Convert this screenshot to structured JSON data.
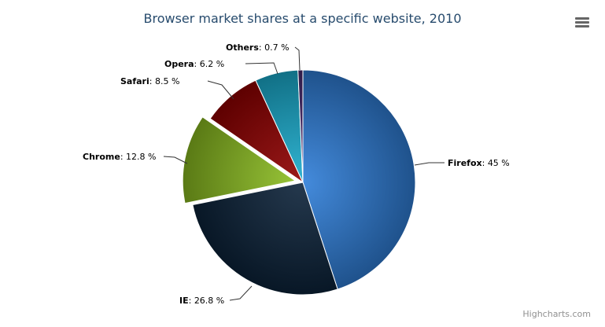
{
  "title": "Browser market shares at a specific website, 2010",
  "credits": "Highcharts.com",
  "menu_icon": "hamburger-menu-icon",
  "chart_data": {
    "type": "pie",
    "title": "Browser market shares at a specific website, 2010",
    "unit": "%",
    "slices": [
      {
        "name": "Firefox",
        "value": 45.0,
        "label": "45 %",
        "color": "#2f7ed8",
        "sliced": false
      },
      {
        "name": "IE",
        "value": 26.8,
        "label": "26.8 %",
        "color": "#0d233a",
        "sliced": false
      },
      {
        "name": "Chrome",
        "value": 12.8,
        "label": "12.8 %",
        "color": "#8bbc21",
        "sliced": true
      },
      {
        "name": "Safari",
        "value": 8.5,
        "label": "8.5 %",
        "color": "#910000",
        "sliced": false
      },
      {
        "name": "Opera",
        "value": 6.2,
        "label": "6.2 %",
        "color": "#1aadce",
        "sliced": false
      },
      {
        "name": "Others",
        "value": 0.7,
        "label": "0.7 %",
        "color": "#492970",
        "sliced": false
      }
    ]
  }
}
